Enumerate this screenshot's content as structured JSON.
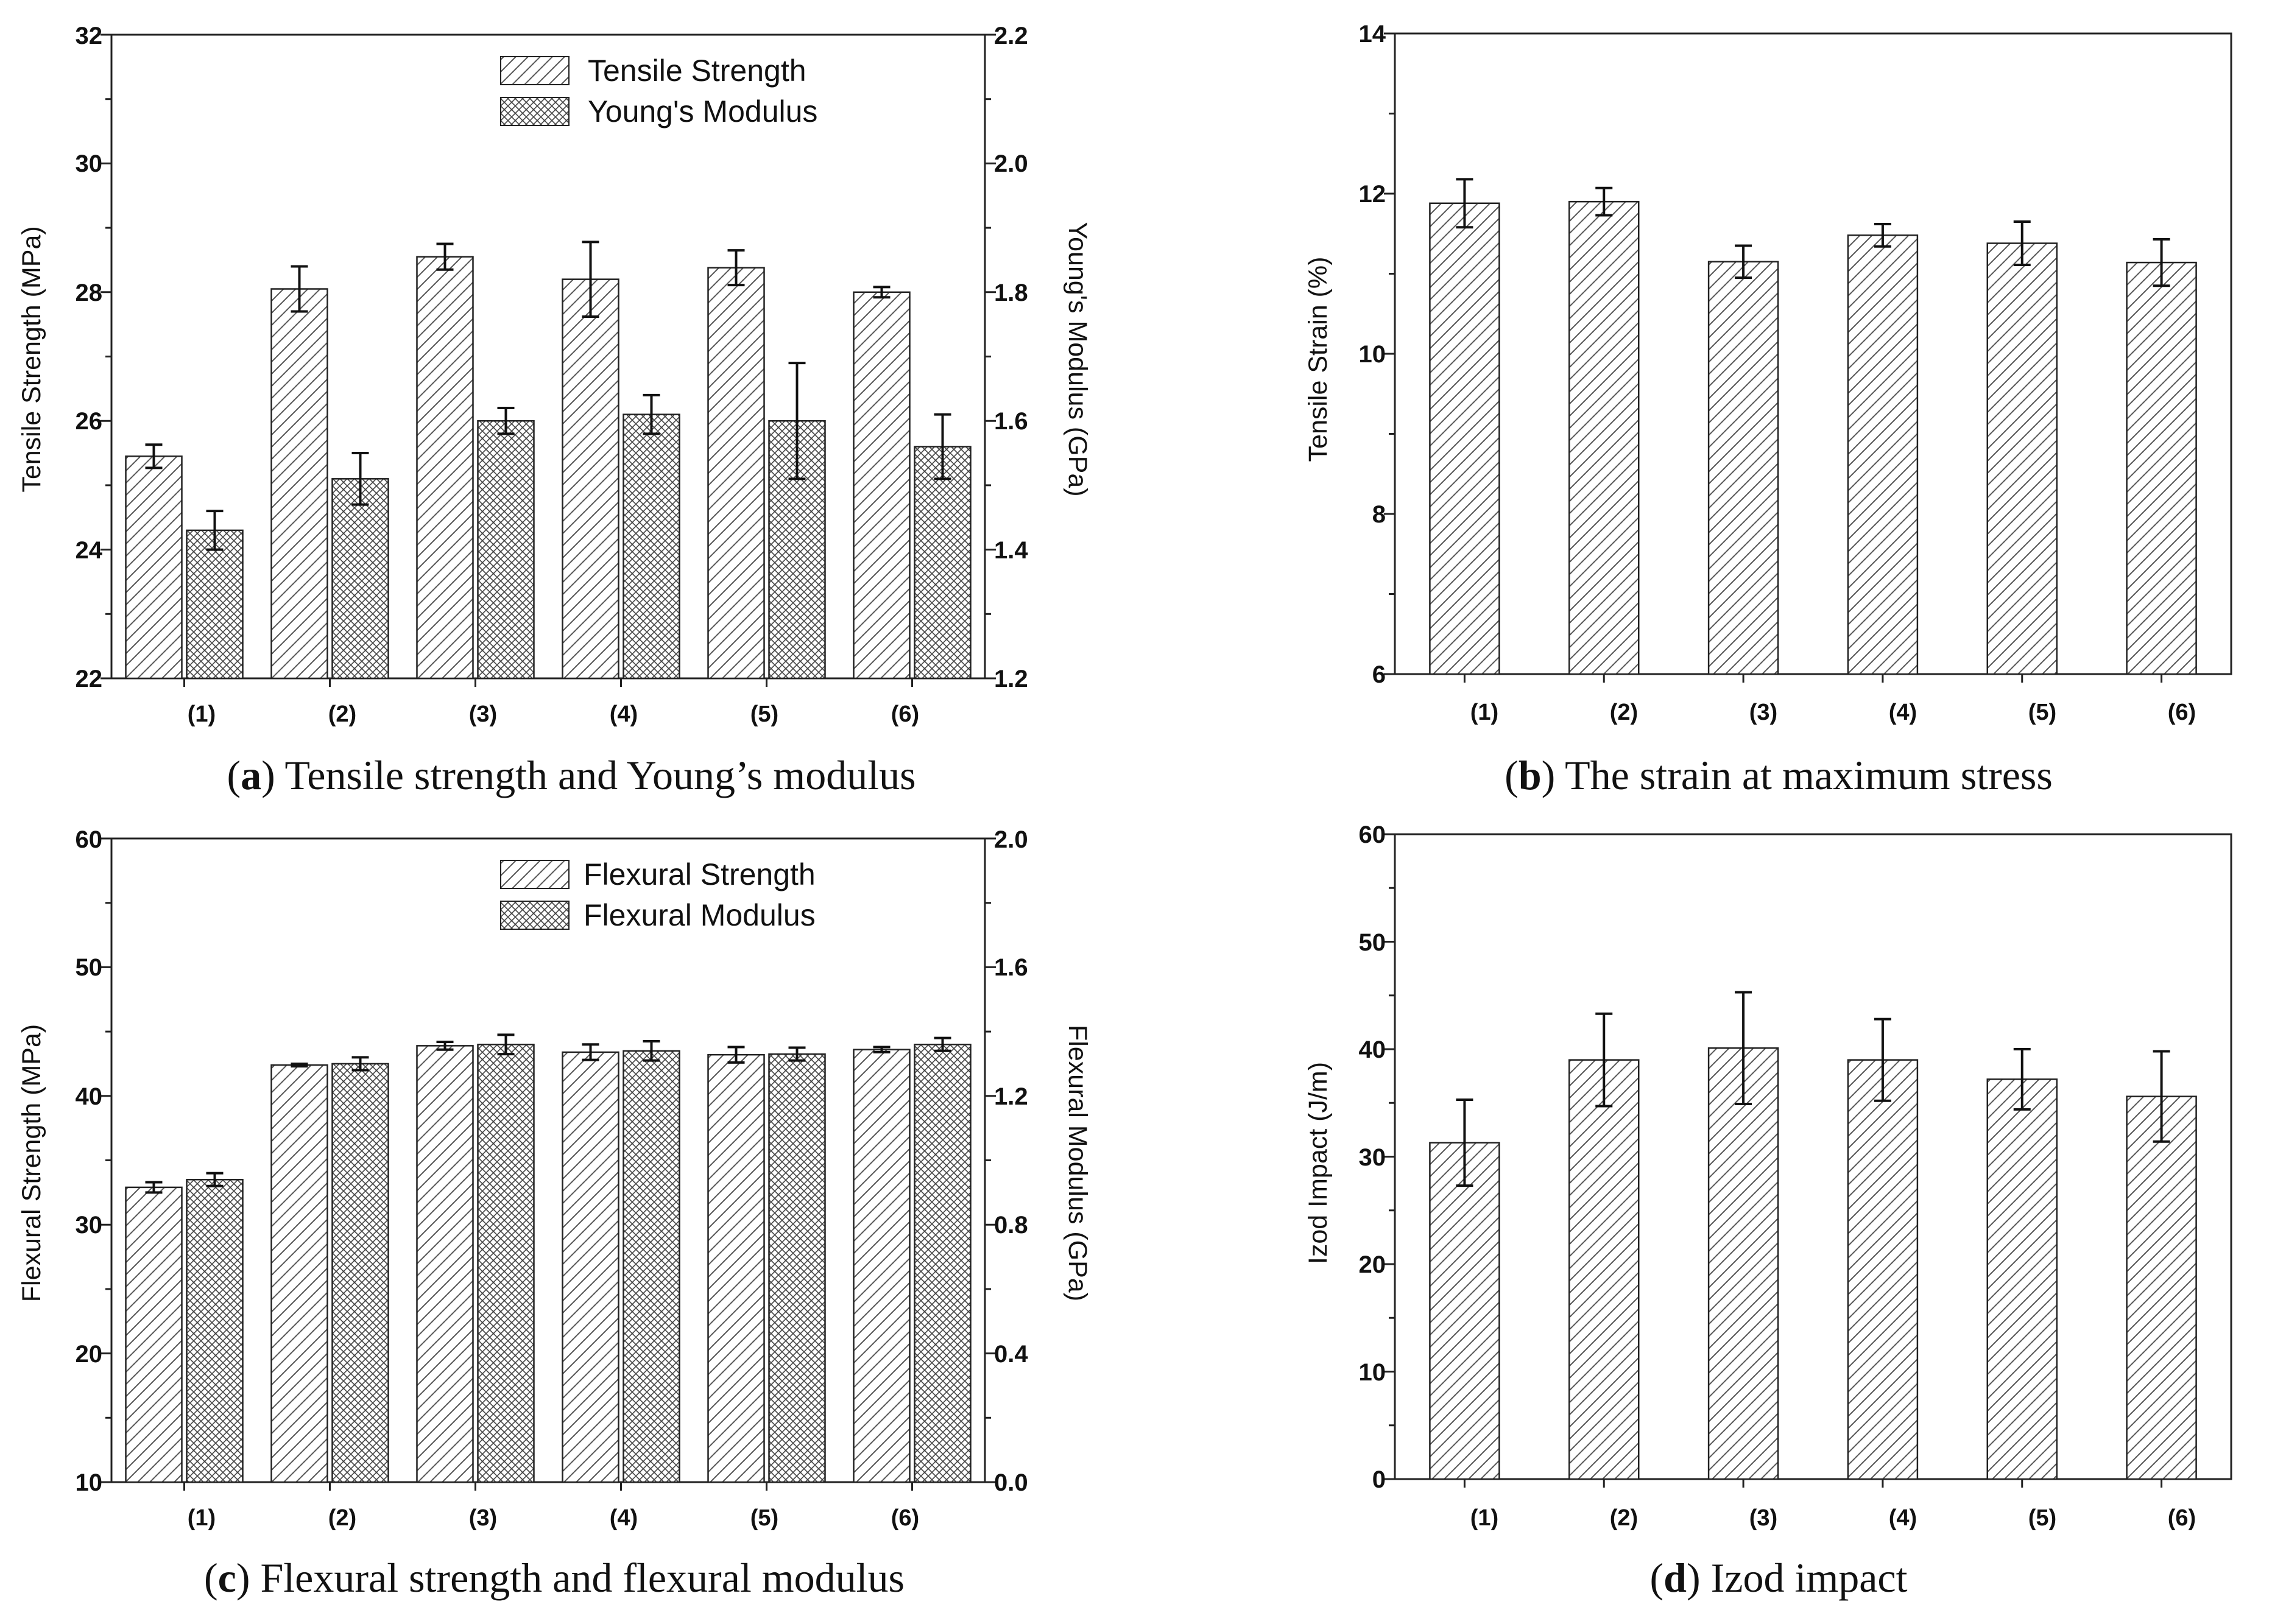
{
  "chart_data": [
    {
      "id": "a",
      "type": "bar",
      "caption_letter": "a",
      "caption_text": "Tensile strength and Young’s modulus",
      "categories": [
        "(1)",
        "(2)",
        "(3)",
        "(4)",
        "(5)",
        "(6)"
      ],
      "ylabel_left": "Tensile Strength (MPa)",
      "ylabel_right": "Young's Modulus (GPa)",
      "ylim_left": [
        22,
        32
      ],
      "yticks_left": [
        22,
        24,
        26,
        28,
        30,
        32
      ],
      "ytick_labels_left": [
        "22",
        "24",
        "26",
        "28",
        "30",
        "32"
      ],
      "ylim_right": [
        1.2,
        2.2
      ],
      "yticks_right": [
        1.2,
        1.4,
        1.6,
        1.8,
        2.0,
        2.2
      ],
      "ytick_labels_right": [
        "1.2",
        "1.4",
        "1.6",
        "1.8",
        "2.0",
        "2.2"
      ],
      "legend_position": "top-center",
      "series": [
        {
          "name": "Tensile Strength",
          "axis": "left",
          "pattern": "hatch",
          "values": [
            25.45,
            28.05,
            28.55,
            28.2,
            28.38,
            28.0
          ],
          "errors": [
            0.18,
            0.35,
            0.2,
            0.58,
            0.27,
            0.08
          ]
        },
        {
          "name": "Young's Modulus",
          "axis": "right",
          "pattern": "crosshatch",
          "values": [
            1.43,
            1.51,
            1.6,
            1.61,
            1.6,
            1.56
          ],
          "errors": [
            0.03,
            0.04,
            0.02,
            0.03,
            0.09,
            0.05
          ]
        }
      ]
    },
    {
      "id": "b",
      "type": "bar",
      "caption_letter": "b",
      "caption_text": "The strain at maximum stress",
      "categories": [
        "(1)",
        "(2)",
        "(3)",
        "(4)",
        "(5)",
        "(6)"
      ],
      "ylabel_left": "Tensile Strain (%)",
      "ylim_left": [
        6,
        14
      ],
      "yticks_left": [
        6,
        8,
        10,
        12,
        14
      ],
      "ytick_labels_left": [
        "6",
        "8",
        "10",
        "12",
        "14"
      ],
      "series": [
        {
          "name": "Tensile Strain",
          "axis": "left",
          "pattern": "hatch",
          "values": [
            11.88,
            11.9,
            11.15,
            11.48,
            11.38,
            11.14
          ],
          "errors": [
            0.3,
            0.17,
            0.2,
            0.14,
            0.27,
            0.29
          ]
        }
      ]
    },
    {
      "id": "c",
      "type": "bar",
      "caption_letter": "c",
      "caption_text": "Flexural strength and flexural modulus",
      "categories": [
        "(1)",
        "(2)",
        "(3)",
        "(4)",
        "(5)",
        "(6)"
      ],
      "ylabel_left": "Flexural Strength (MPa)",
      "ylabel_right": "Flexural Modulus (GPa)",
      "ylim_left": [
        10,
        60
      ],
      "yticks_left": [
        10,
        20,
        30,
        40,
        50,
        60
      ],
      "ytick_labels_left": [
        "10",
        "20",
        "30",
        "40",
        "50",
        "60"
      ],
      "ylim_right": [
        0.0,
        2.0
      ],
      "yticks_right": [
        0.0,
        0.4,
        0.8,
        1.2,
        1.6,
        2.0
      ],
      "ytick_labels_right": [
        "0.0",
        "0.4",
        "0.8",
        "1.2",
        "1.6",
        "2.0"
      ],
      "legend_position": "top-center",
      "series": [
        {
          "name": "Flexural Strength",
          "axis": "left",
          "pattern": "hatch",
          "values": [
            32.9,
            42.4,
            43.9,
            43.4,
            43.2,
            43.6
          ],
          "errors": [
            0.4,
            0.1,
            0.3,
            0.6,
            0.6,
            0.2
          ]
        },
        {
          "name": "Flexural Modulus",
          "axis": "right",
          "pattern": "crosshatch",
          "values": [
            0.94,
            1.3,
            1.36,
            1.34,
            1.33,
            1.36
          ],
          "errors": [
            0.02,
            0.02,
            0.03,
            0.03,
            0.02,
            0.02
          ]
        }
      ]
    },
    {
      "id": "d",
      "type": "bar",
      "caption_letter": "d",
      "caption_text": "Izod impact",
      "categories": [
        "(1)",
        "(2)",
        "(3)",
        "(4)",
        "(5)",
        "(6)"
      ],
      "ylabel_left": "Izod Impact (J/m)",
      "ylim_left": [
        0,
        60
      ],
      "yticks_left": [
        0,
        10,
        20,
        30,
        40,
        50,
        60
      ],
      "ytick_labels_left": [
        "0",
        "10",
        "20",
        "30",
        "40",
        "50",
        "60"
      ],
      "series": [
        {
          "name": "Izod Impact",
          "axis": "left",
          "pattern": "hatch",
          "values": [
            31.3,
            39.0,
            40.1,
            39.0,
            37.2,
            35.6
          ],
          "errors": [
            4.0,
            4.3,
            5.2,
            3.8,
            2.8,
            4.2
          ]
        }
      ]
    }
  ]
}
